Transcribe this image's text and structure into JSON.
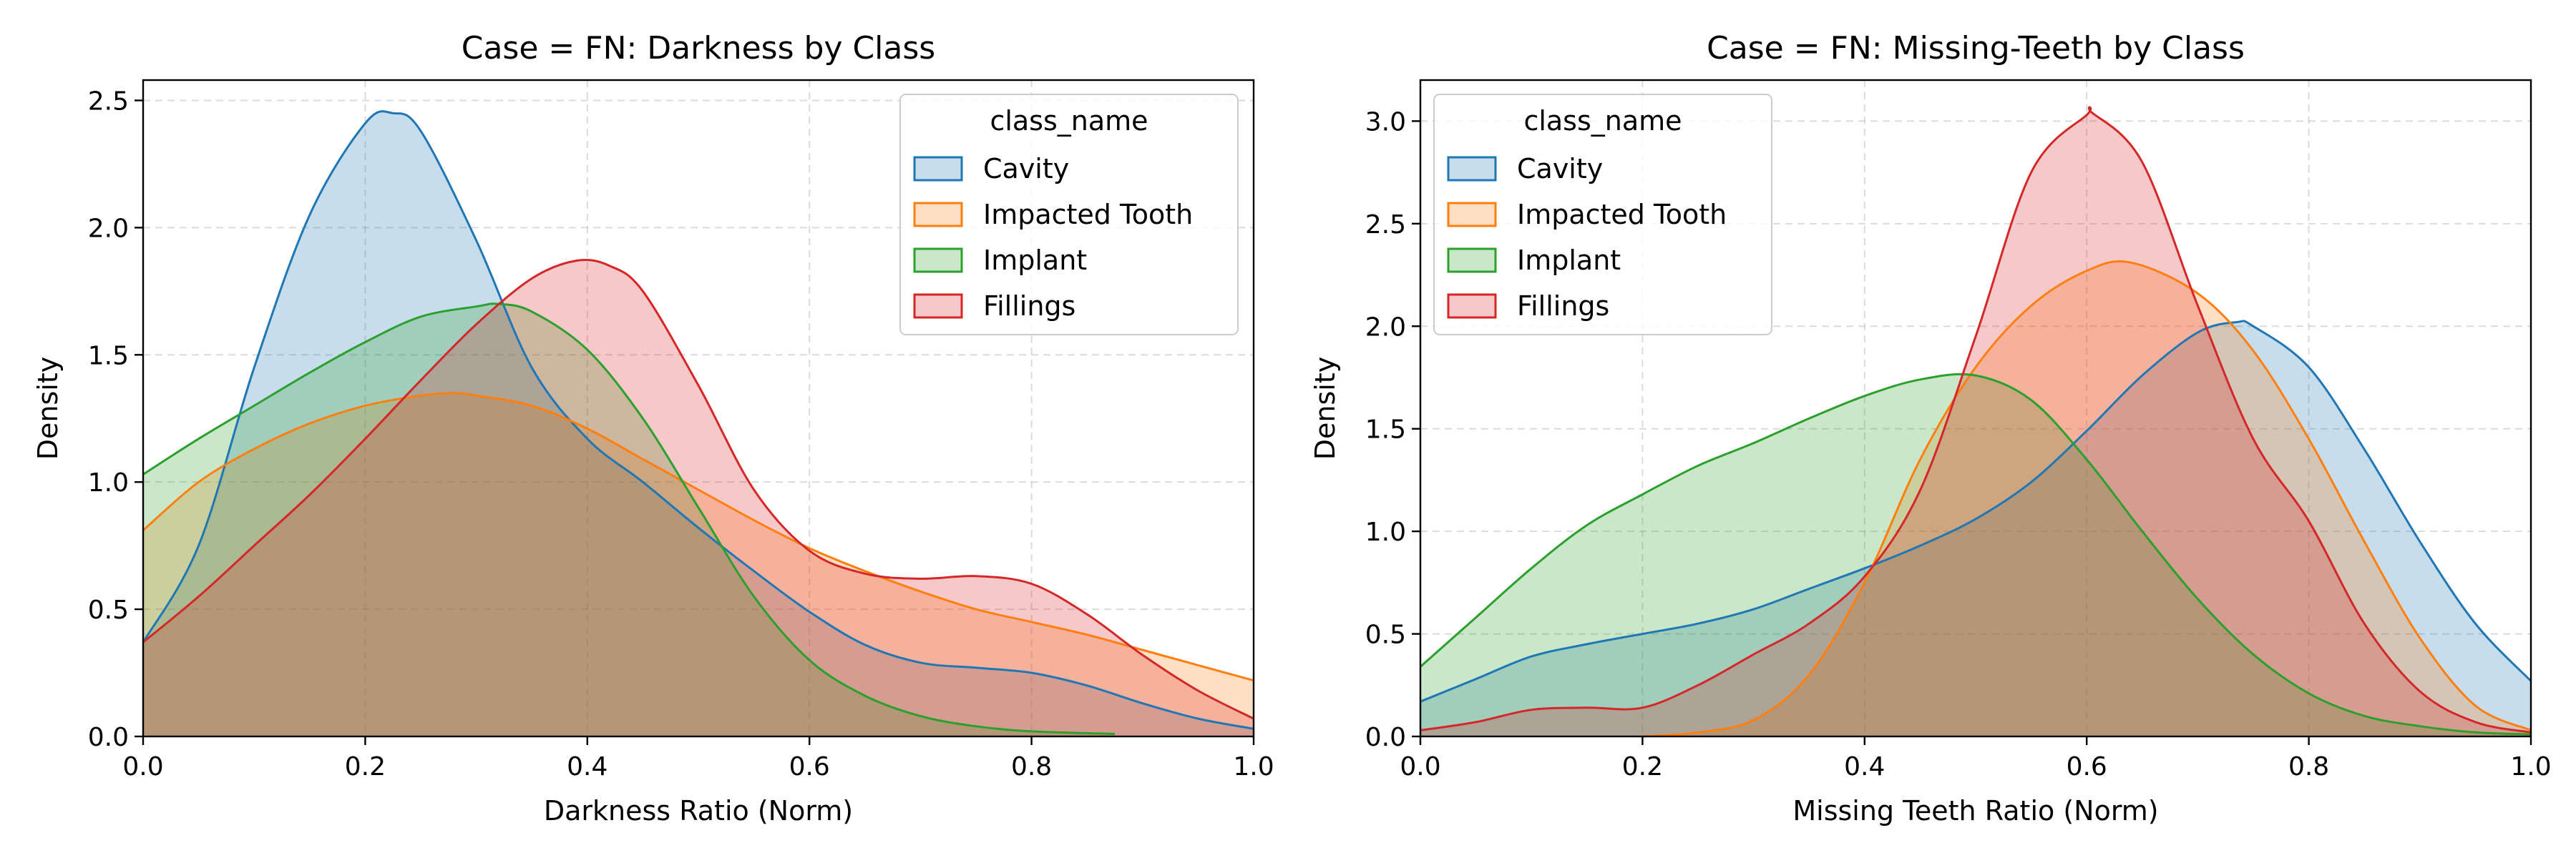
{
  "chart_data": [
    {
      "type": "area",
      "title": "Case = FN: Darkness by Class",
      "xlabel": "Darkness Ratio (Norm)",
      "ylabel": "Density",
      "xlim": [
        0,
        1
      ],
      "ylim": [
        0,
        2.58
      ],
      "xticks": [
        "0.0",
        "0.2",
        "0.4",
        "0.6",
        "0.8",
        "1.0"
      ],
      "yticks": [
        "0.0",
        "0.5",
        "1.0",
        "1.5",
        "2.0",
        "2.5"
      ],
      "grid": true,
      "legend": {
        "title": "class_name",
        "position": "top-right"
      },
      "series": [
        {
          "name": "Cavity",
          "color": "#1f77b4",
          "x": [
            0,
            0.05,
            0.1,
            0.15,
            0.2,
            0.225,
            0.25,
            0.3,
            0.35,
            0.4,
            0.45,
            0.5,
            0.55,
            0.6,
            0.65,
            0.7,
            0.75,
            0.8,
            0.85,
            0.9,
            0.95,
            1.0
          ],
          "y": [
            0.37,
            0.75,
            1.45,
            2.05,
            2.41,
            2.45,
            2.38,
            1.95,
            1.45,
            1.17,
            1.0,
            0.82,
            0.65,
            0.49,
            0.36,
            0.29,
            0.27,
            0.25,
            0.2,
            0.13,
            0.07,
            0.03
          ]
        },
        {
          "name": "Impacted Tooth",
          "color": "#ff7f0e",
          "x": [
            0,
            0.05,
            0.1,
            0.15,
            0.2,
            0.25,
            0.28,
            0.3,
            0.35,
            0.4,
            0.45,
            0.5,
            0.55,
            0.6,
            0.65,
            0.7,
            0.75,
            0.8,
            0.85,
            0.9,
            0.95,
            1.0
          ],
          "y": [
            0.81,
            1.0,
            1.13,
            1.23,
            1.3,
            1.34,
            1.35,
            1.34,
            1.3,
            1.21,
            1.09,
            0.97,
            0.85,
            0.74,
            0.65,
            0.57,
            0.5,
            0.45,
            0.4,
            0.34,
            0.28,
            0.22
          ]
        },
        {
          "name": "Implant",
          "color": "#2ca02c",
          "x": [
            0,
            0.05,
            0.1,
            0.15,
            0.2,
            0.25,
            0.3,
            0.32,
            0.35,
            0.4,
            0.45,
            0.5,
            0.55,
            0.6,
            0.65,
            0.7,
            0.75,
            0.8,
            0.875
          ],
          "y": [
            1.03,
            1.17,
            1.3,
            1.43,
            1.55,
            1.65,
            1.69,
            1.7,
            1.67,
            1.52,
            1.25,
            0.9,
            0.55,
            0.3,
            0.16,
            0.08,
            0.04,
            0.02,
            0.01
          ]
        },
        {
          "name": "Fillings",
          "color": "#d62728",
          "x": [
            0,
            0.05,
            0.1,
            0.15,
            0.2,
            0.25,
            0.3,
            0.35,
            0.39,
            0.42,
            0.45,
            0.5,
            0.55,
            0.6,
            0.65,
            0.7,
            0.75,
            0.8,
            0.85,
            0.9,
            0.95,
            1.0
          ],
          "y": [
            0.37,
            0.55,
            0.75,
            0.95,
            1.17,
            1.4,
            1.62,
            1.8,
            1.87,
            1.85,
            1.75,
            1.38,
            0.97,
            0.73,
            0.64,
            0.62,
            0.63,
            0.6,
            0.48,
            0.32,
            0.18,
            0.07
          ]
        }
      ]
    },
    {
      "type": "area",
      "title": "Case = FN: Missing-Teeth by Class",
      "xlabel": "Missing Teeth Ratio (Norm)",
      "ylabel": "Density",
      "xlim": [
        0,
        1
      ],
      "ylim": [
        0,
        3.2
      ],
      "xticks": [
        "0.0",
        "0.2",
        "0.4",
        "0.6",
        "0.8",
        "1.0"
      ],
      "yticks": [
        "0.0",
        "0.5",
        "1.0",
        "1.5",
        "2.0",
        "2.5",
        "3.0"
      ],
      "grid": true,
      "legend": {
        "title": "class_name",
        "position": "top-left"
      },
      "series": [
        {
          "name": "Cavity",
          "color": "#1f77b4",
          "x": [
            0,
            0.05,
            0.1,
            0.15,
            0.2,
            0.25,
            0.3,
            0.35,
            0.4,
            0.45,
            0.5,
            0.55,
            0.6,
            0.65,
            0.7,
            0.735,
            0.75,
            0.8,
            0.85,
            0.9,
            0.95,
            1.0
          ],
          "y": [
            0.17,
            0.28,
            0.39,
            0.45,
            0.5,
            0.55,
            0.62,
            0.72,
            0.82,
            0.93,
            1.06,
            1.24,
            1.49,
            1.76,
            1.97,
            2.02,
            2.0,
            1.8,
            1.4,
            0.95,
            0.55,
            0.27
          ]
        },
        {
          "name": "Impacted Tooth",
          "color": "#ff7f0e",
          "x": [
            0.2,
            0.25,
            0.3,
            0.35,
            0.4,
            0.45,
            0.5,
            0.55,
            0.6,
            0.64,
            0.7,
            0.75,
            0.8,
            0.85,
            0.9,
            0.95,
            1.0
          ],
          "y": [
            0.0,
            0.02,
            0.08,
            0.3,
            0.75,
            1.35,
            1.8,
            2.1,
            2.27,
            2.31,
            2.16,
            1.88,
            1.45,
            0.95,
            0.48,
            0.15,
            0.03
          ]
        },
        {
          "name": "Implant",
          "color": "#2ca02c",
          "x": [
            0,
            0.05,
            0.1,
            0.15,
            0.2,
            0.25,
            0.3,
            0.35,
            0.4,
            0.45,
            0.5,
            0.55,
            0.6,
            0.65,
            0.7,
            0.75,
            0.8,
            0.85,
            0.9,
            0.95,
            1.0
          ],
          "y": [
            0.34,
            0.58,
            0.82,
            1.03,
            1.18,
            1.32,
            1.43,
            1.55,
            1.66,
            1.74,
            1.76,
            1.64,
            1.35,
            1.0,
            0.67,
            0.4,
            0.21,
            0.1,
            0.05,
            0.02,
            0.01
          ]
        },
        {
          "name": "Fillings",
          "color": "#d62728",
          "x": [
            0,
            0.05,
            0.1,
            0.15,
            0.2,
            0.25,
            0.3,
            0.35,
            0.4,
            0.45,
            0.5,
            0.55,
            0.6,
            0.605,
            0.65,
            0.7,
            0.75,
            0.8,
            0.85,
            0.9,
            0.95,
            1.0
          ],
          "y": [
            0.03,
            0.07,
            0.13,
            0.14,
            0.14,
            0.25,
            0.4,
            0.55,
            0.78,
            1.2,
            1.95,
            2.75,
            3.03,
            3.04,
            2.8,
            2.1,
            1.45,
            1.05,
            0.55,
            0.22,
            0.07,
            0.02
          ]
        }
      ]
    }
  ]
}
